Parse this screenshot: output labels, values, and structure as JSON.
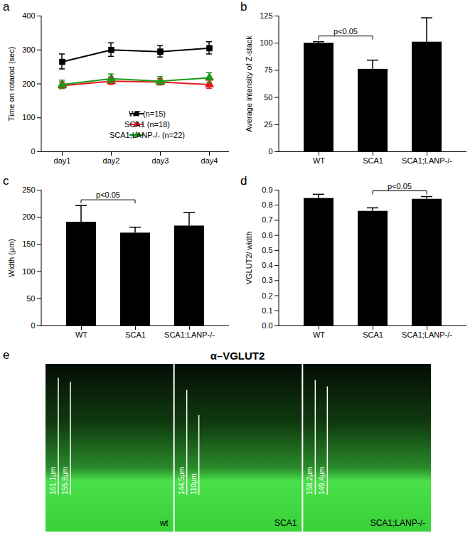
{
  "chart_data": [
    {
      "panel": "a",
      "type": "line",
      "y_label": "Time on rotarod (sec)",
      "categories": [
        "day1",
        "day2",
        "day3",
        "day4"
      ],
      "ylim": [
        0,
        400
      ],
      "yticks": [
        0,
        100,
        200,
        300,
        400
      ],
      "legend": "bottom-right",
      "series": [
        {
          "name": "WT (n=15)",
          "color": "#000000",
          "marker": "square",
          "values": [
            265,
            300,
            295,
            305
          ],
          "errors": [
            22,
            20,
            17,
            18
          ]
        },
        {
          "name": "SCA1 (n=18)",
          "color": "#e41a1c",
          "marker": "triangle",
          "values": [
            195,
            208,
            205,
            198
          ],
          "errors": [
            10,
            11,
            9,
            12
          ]
        },
        {
          "name": "SCA1;LANP-/- (n=22)",
          "color": "#1a9a1a",
          "marker": "triangle",
          "values": [
            198,
            215,
            208,
            218
          ],
          "errors": [
            12,
            13,
            12,
            14
          ]
        }
      ]
    },
    {
      "panel": "b",
      "type": "bar",
      "y_label": "Average intensity of Z-stack",
      "categories": [
        "WT",
        "SCA1",
        "SCA1;LANP-/-"
      ],
      "values": [
        100,
        76,
        101
      ],
      "errors": [
        1,
        8,
        22
      ],
      "color": "#000000",
      "ylim": [
        0,
        125
      ],
      "yticks": [
        0,
        25,
        50,
        75,
        100,
        125
      ],
      "annotations": [
        {
          "text": "p<0.05",
          "from": "WT",
          "to": "SCA1"
        }
      ]
    },
    {
      "panel": "c",
      "type": "bar",
      "y_label": "Width (μm)",
      "categories": [
        "WT",
        "SCA1",
        "SCA1;LANP-/-"
      ],
      "values": [
        191,
        171,
        184
      ],
      "errors": [
        30,
        10,
        24
      ],
      "color": "#000000",
      "ylim": [
        0,
        250
      ],
      "yticks": [
        0,
        50,
        100,
        150,
        200,
        250
      ],
      "annotations": [
        {
          "text": "p<0.05",
          "from": "WT",
          "to": "SCA1"
        }
      ]
    },
    {
      "panel": "d",
      "type": "bar",
      "y_label": "VGLUT2/ width",
      "categories": [
        "WT",
        "SCA1",
        "SCA1;LANP-/-"
      ],
      "values": [
        0.845,
        0.76,
        0.84
      ],
      "errors": [
        0.025,
        0.02,
        0.015
      ],
      "color": "#000000",
      "ylim": [
        0,
        0.9
      ],
      "yticks": [
        {
          "value": 0,
          "label": "0.0"
        },
        0.1,
        0.2,
        0.3,
        0.4,
        0.5,
        0.6,
        0.7,
        0.8,
        0.9
      ],
      "annotations": [
        {
          "text": "p<0.05",
          "from": "SCA1",
          "to": "SCA1;LANP-/-"
        }
      ]
    }
  ],
  "image_panel": {
    "panel": "e",
    "title": "α–VGLUT2",
    "sections": [
      {
        "label": "wt",
        "measurements": [
          {
            "value": 161.1,
            "label": "161.1µm"
          },
          {
            "value": 155.8,
            "label": "155.8µm"
          }
        ]
      },
      {
        "label": "SCA1",
        "measurements": [
          {
            "value": 144.5,
            "label": "144.5µm"
          },
          {
            "value": 110,
            "label": "110µm"
          }
        ]
      },
      {
        "label": "SCA1;LANP-/-",
        "measurements": [
          {
            "value": 158.2,
            "label": "158.2µm"
          },
          {
            "value": 149.4,
            "label": "149.4µm"
          }
        ]
      }
    ]
  }
}
